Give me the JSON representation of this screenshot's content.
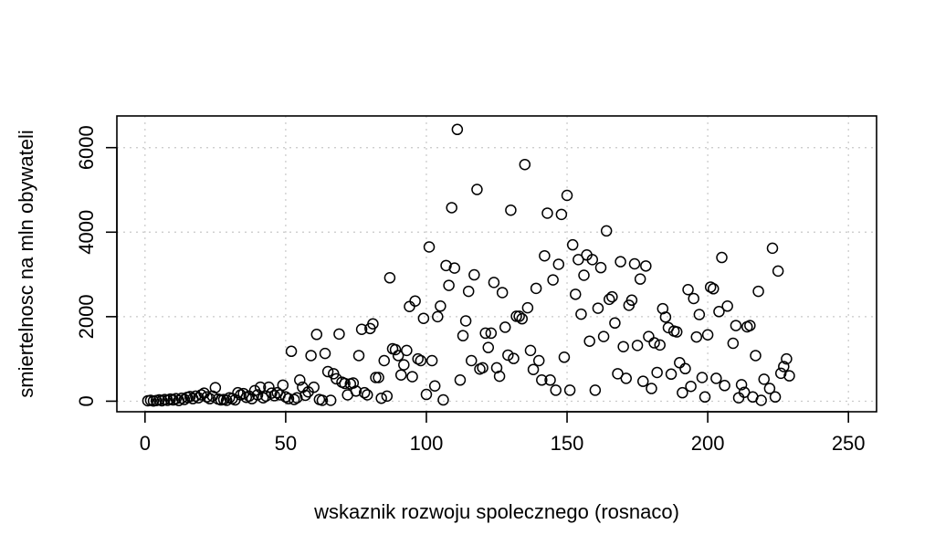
{
  "chart_data": {
    "type": "scatter",
    "title": "",
    "xlabel": "wskaznik rozwoju spolecznego (rosnaco)",
    "ylabel": "smiertelnosc na mln obywateli",
    "xlim": [
      -10,
      260
    ],
    "ylim": [
      -250,
      6750
    ],
    "xticks": [
      0,
      50,
      100,
      150,
      200,
      250
    ],
    "yticks": [
      0,
      2000,
      4000,
      6000
    ],
    "grid": true,
    "legend": "none",
    "series": [
      {
        "points": [
          [
            1,
            10
          ],
          [
            2,
            20
          ],
          [
            3,
            5
          ],
          [
            4,
            15
          ],
          [
            5,
            30
          ],
          [
            6,
            10
          ],
          [
            7,
            40
          ],
          [
            8,
            20
          ],
          [
            9,
            50
          ],
          [
            10,
            30
          ],
          [
            11,
            60
          ],
          [
            12,
            15
          ],
          [
            13,
            70
          ],
          [
            14,
            40
          ],
          [
            15,
            90
          ],
          [
            16,
            110
          ],
          [
            17,
            60
          ],
          [
            18,
            120
          ],
          [
            19,
            80
          ],
          [
            20,
            150
          ],
          [
            21,
            190
          ],
          [
            22,
            100
          ],
          [
            23,
            60
          ],
          [
            24,
            120
          ],
          [
            25,
            320
          ],
          [
            26,
            50
          ],
          [
            27,
            30
          ],
          [
            28,
            40
          ],
          [
            29,
            20
          ],
          [
            30,
            80
          ],
          [
            31,
            60
          ],
          [
            32,
            30
          ],
          [
            33,
            200
          ],
          [
            34,
            150
          ],
          [
            35,
            180
          ],
          [
            36,
            90
          ],
          [
            37,
            120
          ],
          [
            38,
            60
          ],
          [
            39,
            250
          ],
          [
            40,
            150
          ],
          [
            41,
            330
          ],
          [
            42,
            80
          ],
          [
            43,
            120
          ],
          [
            44,
            330
          ],
          [
            45,
            190
          ],
          [
            46,
            130
          ],
          [
            47,
            200
          ],
          [
            48,
            150
          ],
          [
            49,
            380
          ],
          [
            50,
            100
          ],
          [
            51,
            60
          ],
          [
            52,
            1180
          ],
          [
            53,
            40
          ],
          [
            54,
            80
          ],
          [
            55,
            500
          ],
          [
            56,
            330
          ],
          [
            57,
            140
          ],
          [
            58,
            220
          ],
          [
            59,
            1080
          ],
          [
            60,
            330
          ],
          [
            61,
            1580
          ],
          [
            62,
            40
          ],
          [
            63,
            20
          ],
          [
            64,
            1130
          ],
          [
            65,
            700
          ],
          [
            66,
            20
          ],
          [
            67,
            650
          ],
          [
            68,
            530
          ],
          [
            69,
            1590
          ],
          [
            70,
            450
          ],
          [
            71,
            420
          ],
          [
            72,
            150
          ],
          [
            73,
            410
          ],
          [
            74,
            430
          ],
          [
            75,
            240
          ],
          [
            76,
            1080
          ],
          [
            77,
            1700
          ],
          [
            78,
            200
          ],
          [
            79,
            150
          ],
          [
            80,
            1720
          ],
          [
            81,
            1830
          ],
          [
            82,
            560
          ],
          [
            83,
            560
          ],
          [
            84,
            70
          ],
          [
            85,
            960
          ],
          [
            86,
            120
          ],
          [
            87,
            2920
          ],
          [
            88,
            1240
          ],
          [
            89,
            1220
          ],
          [
            90,
            1080
          ],
          [
            91,
            620
          ],
          [
            92,
            860
          ],
          [
            93,
            1200
          ],
          [
            94,
            2240
          ],
          [
            95,
            580
          ],
          [
            96,
            2370
          ],
          [
            97,
            1000
          ],
          [
            98,
            960
          ],
          [
            99,
            1960
          ],
          [
            100,
            160
          ],
          [
            101,
            3650
          ],
          [
            102,
            960
          ],
          [
            103,
            360
          ],
          [
            104,
            2000
          ],
          [
            105,
            2250
          ],
          [
            106,
            30
          ],
          [
            107,
            3210
          ],
          [
            108,
            2740
          ],
          [
            109,
            4580
          ],
          [
            110,
            3150
          ],
          [
            111,
            6430
          ],
          [
            112,
            500
          ],
          [
            113,
            1550
          ],
          [
            114,
            1900
          ],
          [
            115,
            2600
          ],
          [
            116,
            960
          ],
          [
            117,
            2990
          ],
          [
            118,
            5010
          ],
          [
            119,
            760
          ],
          [
            120,
            790
          ],
          [
            121,
            1610
          ],
          [
            122,
            1270
          ],
          [
            123,
            1610
          ],
          [
            124,
            2810
          ],
          [
            125,
            790
          ],
          [
            126,
            590
          ],
          [
            127,
            2570
          ],
          [
            128,
            1750
          ],
          [
            129,
            1090
          ],
          [
            130,
            4520
          ],
          [
            131,
            1010
          ],
          [
            132,
            2010
          ],
          [
            133,
            2010
          ],
          [
            134,
            1950
          ],
          [
            135,
            5600
          ],
          [
            136,
            2210
          ],
          [
            137,
            1200
          ],
          [
            138,
            750
          ],
          [
            139,
            2670
          ],
          [
            140,
            960
          ],
          [
            141,
            500
          ],
          [
            142,
            3440
          ],
          [
            143,
            4450
          ],
          [
            144,
            500
          ],
          [
            145,
            2870
          ],
          [
            146,
            260
          ],
          [
            147,
            3240
          ],
          [
            148,
            4420
          ],
          [
            149,
            1040
          ],
          [
            150,
            4870
          ],
          [
            151,
            260
          ],
          [
            152,
            3700
          ],
          [
            153,
            2530
          ],
          [
            154,
            3350
          ],
          [
            155,
            2060
          ],
          [
            156,
            2980
          ],
          [
            157,
            3460
          ],
          [
            158,
            1420
          ],
          [
            159,
            3350
          ],
          [
            160,
            260
          ],
          [
            161,
            2200
          ],
          [
            162,
            3160
          ],
          [
            163,
            1530
          ],
          [
            164,
            4030
          ],
          [
            165,
            2410
          ],
          [
            166,
            2470
          ],
          [
            167,
            1850
          ],
          [
            168,
            650
          ],
          [
            169,
            3300
          ],
          [
            170,
            1290
          ],
          [
            171,
            540
          ],
          [
            172,
            2270
          ],
          [
            173,
            2390
          ],
          [
            174,
            3250
          ],
          [
            175,
            1320
          ],
          [
            176,
            2890
          ],
          [
            177,
            470
          ],
          [
            178,
            3200
          ],
          [
            179,
            1530
          ],
          [
            180,
            300
          ],
          [
            181,
            1380
          ],
          [
            182,
            680
          ],
          [
            183,
            1330
          ],
          [
            184,
            2190
          ],
          [
            185,
            1990
          ],
          [
            186,
            1740
          ],
          [
            187,
            640
          ],
          [
            188,
            1660
          ],
          [
            189,
            1640
          ],
          [
            190,
            910
          ],
          [
            191,
            200
          ],
          [
            192,
            770
          ],
          [
            193,
            2640
          ],
          [
            194,
            350
          ],
          [
            195,
            2430
          ],
          [
            196,
            1520
          ],
          [
            197,
            2050
          ],
          [
            198,
            560
          ],
          [
            199,
            100
          ],
          [
            200,
            1570
          ],
          [
            201,
            2700
          ],
          [
            202,
            2660
          ],
          [
            203,
            540
          ],
          [
            204,
            2120
          ],
          [
            205,
            3400
          ],
          [
            206,
            370
          ],
          [
            207,
            2250
          ],
          [
            209,
            1370
          ],
          [
            210,
            1790
          ],
          [
            211,
            80
          ],
          [
            212,
            390
          ],
          [
            213,
            210
          ],
          [
            214,
            1760
          ],
          [
            215,
            1790
          ],
          [
            216,
            100
          ],
          [
            217,
            1080
          ],
          [
            218,
            2600
          ],
          [
            219,
            20
          ],
          [
            220,
            520
          ],
          [
            222,
            300
          ],
          [
            223,
            3620
          ],
          [
            224,
            100
          ],
          [
            225,
            3080
          ],
          [
            226,
            660
          ],
          [
            227,
            820
          ],
          [
            228,
            1000
          ],
          [
            229,
            600
          ]
        ]
      }
    ]
  }
}
